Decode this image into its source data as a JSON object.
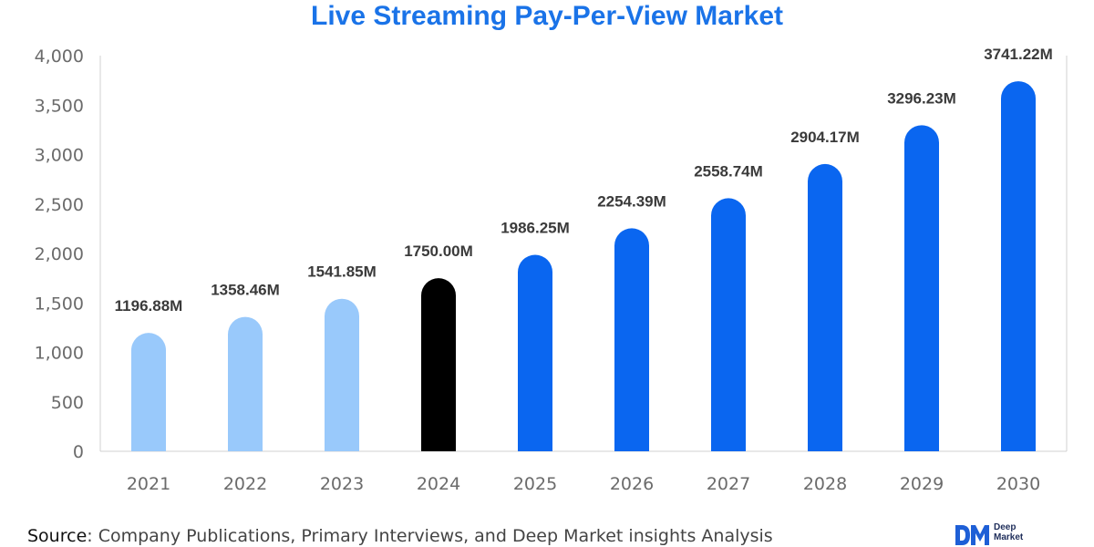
{
  "title": "Live Streaming Pay-Per-View Market",
  "source": {
    "prefix": "Source",
    "text": ": Company Publications, Primary Interviews, and Deep Market insights Analysis"
  },
  "logo": {
    "line1": "Deep",
    "line2": "Market",
    "mark_icon": "dm-monogram-logo",
    "color": "#1e5fd6"
  },
  "colors": {
    "title": "#1a73e8",
    "historical": "#99c9fb",
    "base_year": "#000000",
    "forecast": "#0a66f0",
    "axis": "#d0d0d0"
  },
  "chart_data": {
    "type": "bar",
    "title": "Live Streaming Pay-Per-View Market",
    "xlabel": "",
    "ylabel": "",
    "categories": [
      "2021",
      "2022",
      "2023",
      "2024",
      "2025",
      "2026",
      "2027",
      "2028",
      "2029",
      "2030"
    ],
    "values": [
      1196.88,
      1358.46,
      1541.85,
      1750.0,
      1986.25,
      2254.39,
      2558.74,
      2904.17,
      3296.23,
      3741.22
    ],
    "value_labels": [
      "1196.88M",
      "1358.46M",
      "1541.85M",
      "1750.00M",
      "1986.25M",
      "2254.39M",
      "2558.74M",
      "2904.17M",
      "3296.23M",
      "3741.22M"
    ],
    "bar_groups": [
      "historical",
      "historical",
      "historical",
      "base_year",
      "forecast",
      "forecast",
      "forecast",
      "forecast",
      "forecast",
      "forecast"
    ],
    "ylim": [
      0,
      4000
    ],
    "yticks": [
      0,
      500,
      1000,
      1500,
      2000,
      2500,
      3000,
      3500,
      4000
    ],
    "ytick_labels": [
      "0",
      "500",
      "1,000",
      "1,500",
      "2,000",
      "2,500",
      "3,000",
      "3,500",
      "4,000"
    ],
    "grid": false,
    "legend": "none"
  }
}
